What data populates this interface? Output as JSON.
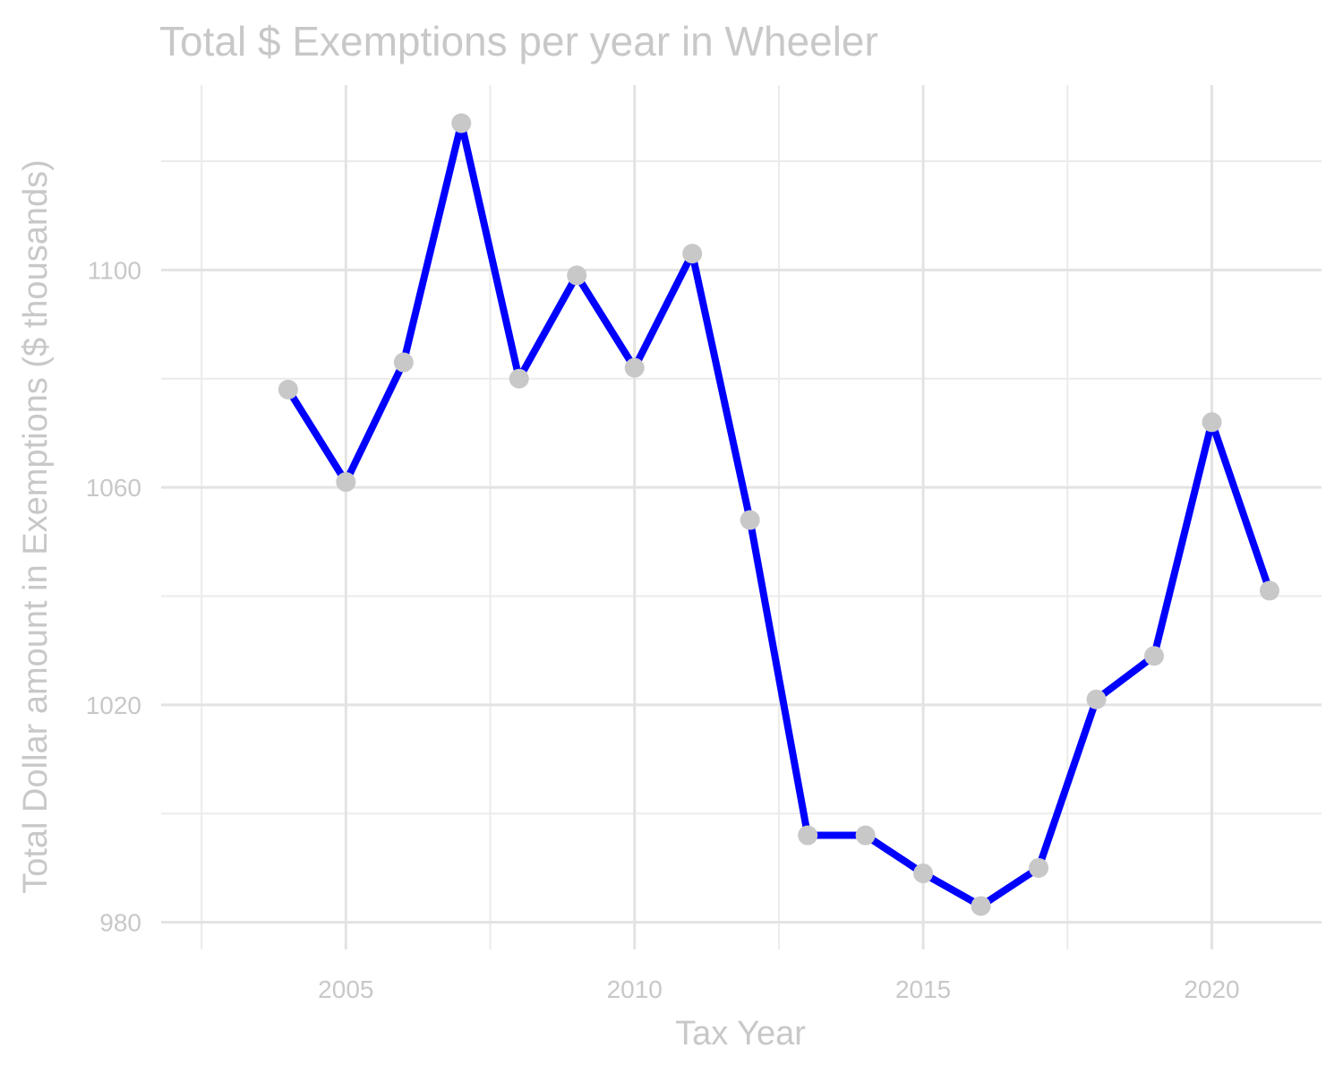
{
  "chart_data": {
    "type": "line",
    "title": "Total $ Exemptions per year in Wheeler",
    "xlabel": "Tax Year",
    "ylabel": "Total Dollar amount in Exemptions ($ thousands)",
    "x": [
      2004,
      2005,
      2006,
      2007,
      2008,
      2009,
      2010,
      2011,
      2012,
      2013,
      2014,
      2015,
      2016,
      2017,
      2018,
      2019,
      2020,
      2021
    ],
    "values": [
      1078,
      1061,
      1083,
      1127,
      1080,
      1099,
      1082,
      1103,
      1054,
      996,
      996,
      989,
      983,
      990,
      1021,
      1029,
      1072,
      1041
    ],
    "xlim": [
      2001.8,
      2021.9
    ],
    "ylim": [
      975,
      1134
    ],
    "x_ticks": [
      2005,
      2010,
      2015,
      2020
    ],
    "x_tick_labels": [
      "2005",
      "2010",
      "2015",
      "2020"
    ],
    "y_ticks": [
      980,
      1020,
      1060,
      1100
    ],
    "y_tick_labels": [
      "980",
      "1020",
      "1060",
      "1100"
    ],
    "line_color": "#0000ff",
    "point_color": "#c8c8c8",
    "grid": true,
    "legend": "none"
  }
}
